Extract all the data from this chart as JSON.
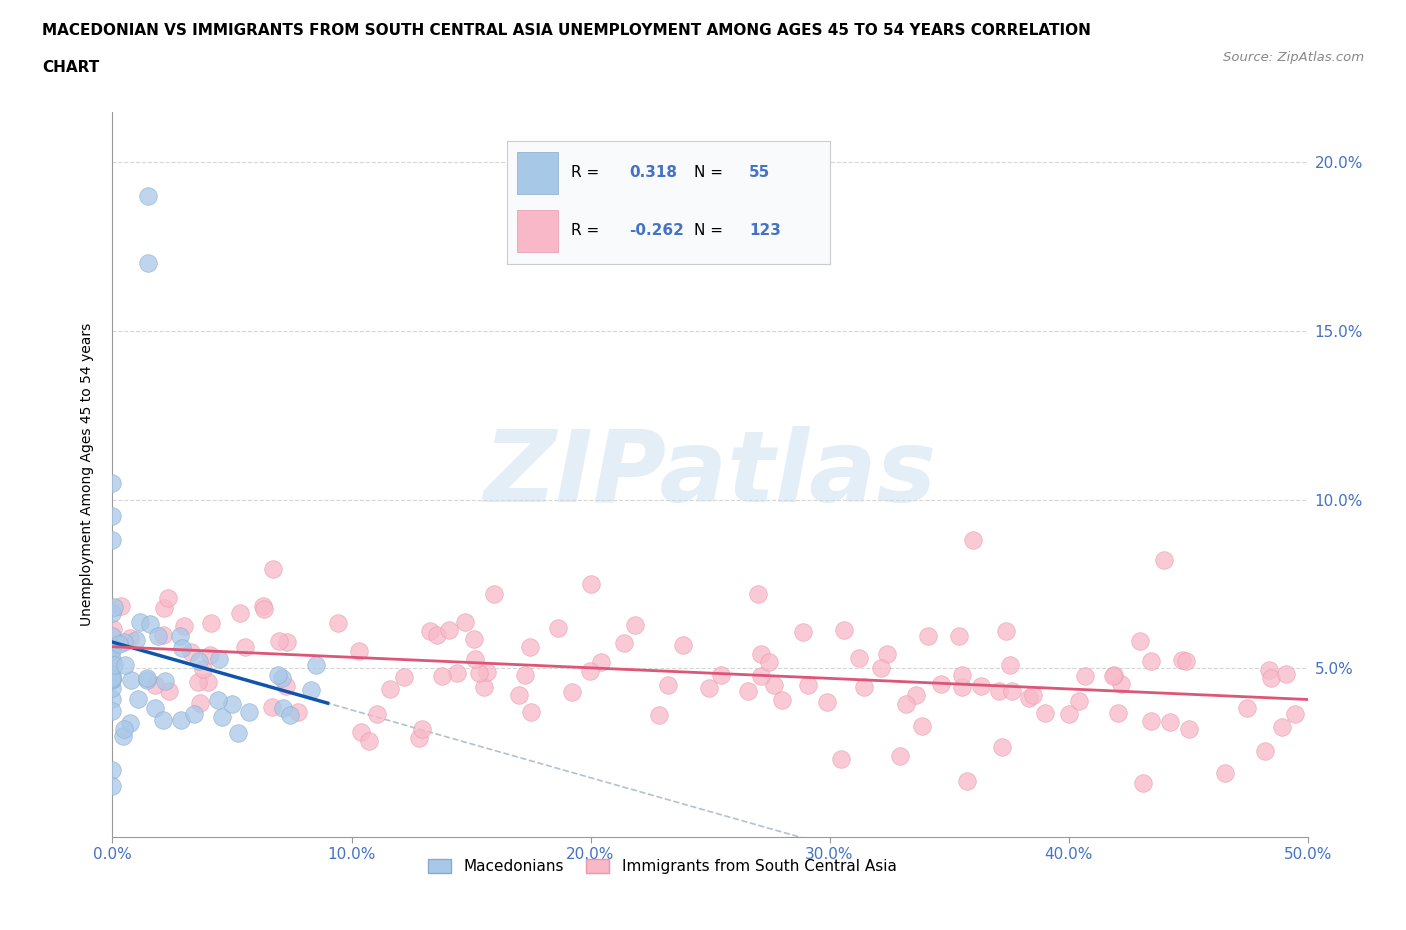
{
  "title_line1": "MACEDONIAN VS IMMIGRANTS FROM SOUTH CENTRAL ASIA UNEMPLOYMENT AMONG AGES 45 TO 54 YEARS CORRELATION",
  "title_line2": "CHART",
  "source": "Source: ZipAtlas.com",
  "ylabel": "Unemployment Among Ages 45 to 54 years",
  "xlim": [
    0.0,
    0.5
  ],
  "ylim": [
    0.0,
    0.215
  ],
  "xticks": [
    0.0,
    0.1,
    0.2,
    0.3,
    0.4,
    0.5
  ],
  "yticks": [
    0.05,
    0.1,
    0.15,
    0.2
  ],
  "ytick_labels": [
    "5.0%",
    "10.0%",
    "15.0%",
    "20.0%"
  ],
  "xtick_labels": [
    "0.0%",
    "10.0%",
    "20.0%",
    "30.0%",
    "40.0%",
    "50.0%"
  ],
  "macedonian_R": 0.318,
  "macedonian_N": 55,
  "immigrant_R": -0.262,
  "immigrant_N": 123,
  "macedonian_color": "#a8c8e8",
  "macedonian_edge_color": "#88aacc",
  "macedonian_line_color": "#1155aa",
  "immigrant_color": "#f8b8c8",
  "immigrant_edge_color": "#e898a8",
  "immigrant_line_color": "#dd5577",
  "dashed_line_color": "#aabbcc",
  "watermark_text": "ZIPatlas",
  "watermark_color": "#c8dff0",
  "legend_face_color": "#f8fafc",
  "legend_border_color": "#cccccc",
  "title_fontsize": 11,
  "axis_label_fontsize": 10,
  "tick_fontsize": 11,
  "tick_color": "#4472c4",
  "background_color": "#ffffff"
}
